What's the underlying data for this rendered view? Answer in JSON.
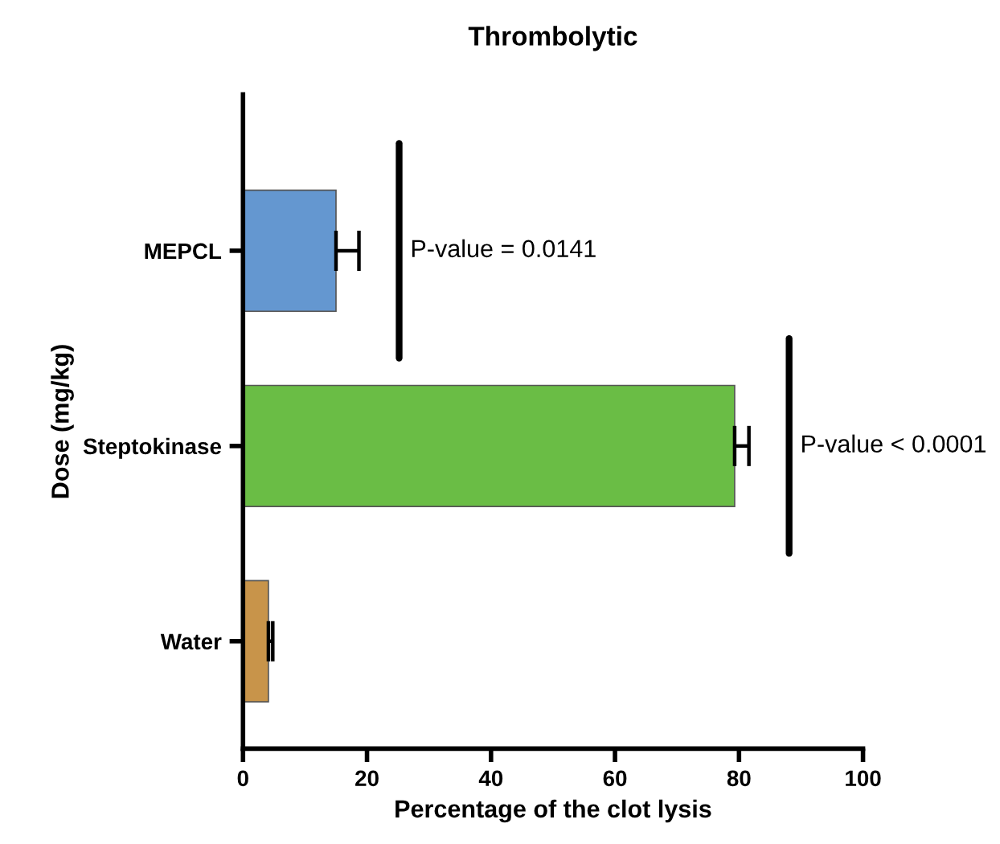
{
  "chart_data": {
    "type": "bar",
    "orientation": "horizontal",
    "title": "Thrombolytic",
    "xlabel": "Percentage of the clot lysis",
    "ylabel": "Dose (mg/kg)",
    "categories": [
      "MEPCL",
      "Steptokinase",
      "Water"
    ],
    "values": [
      15.0,
      79.3,
      4.1
    ],
    "errors": [
      3.7,
      2.3,
      0.7
    ],
    "colors": [
      "#6497d0",
      "#6abd45",
      "#c8944a"
    ],
    "xlim": [
      0,
      100
    ],
    "xticks": [
      0,
      20,
      40,
      60,
      80,
      100
    ],
    "grid": false,
    "annotations": [
      "P-value = 0.0141",
      "P-value < 0.0001"
    ]
  }
}
